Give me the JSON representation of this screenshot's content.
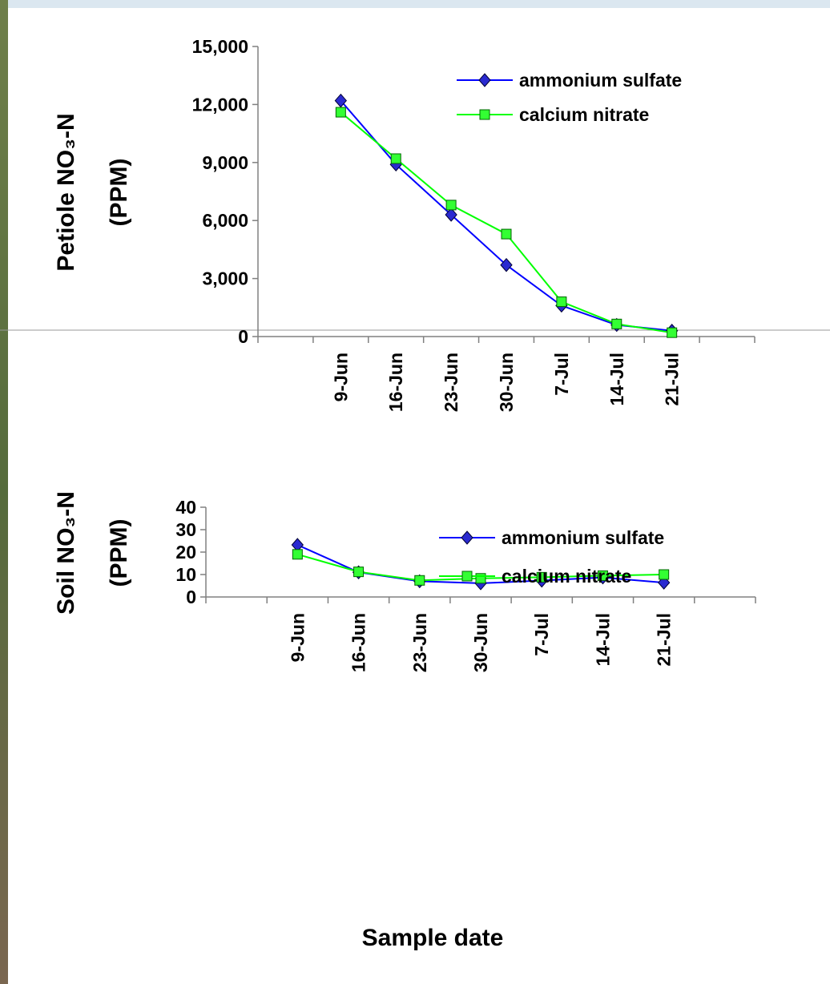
{
  "chart_data": [
    {
      "type": "line",
      "ylabel": [
        "Petiole NO₃-N",
        "(PPM)"
      ],
      "categories": [
        null,
        "9-Jun",
        "16-Jun",
        "23-Jun",
        "30-Jun",
        "7-Jul",
        "14-Jul",
        "21-Jul",
        null
      ],
      "series": [
        {
          "name": "ammonium sulfate",
          "color": "#0000ff",
          "marker": "diamond",
          "marker_color": "#2a2ad0",
          "values": [
            null,
            12200,
            8900,
            6300,
            3700,
            1600,
            600,
            300,
            null
          ]
        },
        {
          "name": "calcium nitrate",
          "color": "#00ff00",
          "marker": "square",
          "marker_color": "#33ff33",
          "values": [
            null,
            11600,
            9200,
            6800,
            5300,
            1800,
            650,
            200,
            null
          ]
        }
      ],
      "ylim": [
        0,
        15000
      ],
      "yticks": [
        {
          "value": 0,
          "label": "0"
        },
        {
          "value": 3000,
          "label": "3,000"
        },
        {
          "value": 6000,
          "label": "6,000"
        },
        {
          "value": 9000,
          "label": "9,000"
        },
        {
          "value": 12000,
          "label": "12,000"
        },
        {
          "value": 15000,
          "label": "15,000"
        }
      ]
    },
    {
      "type": "line",
      "ylabel": [
        "Soil NO₃-N",
        "(PPM)"
      ],
      "xlabel": "Sample date",
      "categories": [
        null,
        "9-Jun",
        "16-Jun",
        "23-Jun",
        "30-Jun",
        "7-Jul",
        "14-Jul",
        "21-Jul",
        null
      ],
      "series": [
        {
          "name": "ammonium sulfate",
          "color": "#0000ff",
          "marker": "diamond",
          "marker_color": "#2a2ad0",
          "values": [
            null,
            23.2,
            11.0,
            7.0,
            6.1,
            7.3,
            8.7,
            6.4,
            null
          ]
        },
        {
          "name": "calcium nitrate",
          "color": "#00ff00",
          "marker": "square",
          "marker_color": "#33ff33",
          "values": [
            null,
            19.0,
            11.2,
            7.4,
            8.3,
            8.8,
            9.5,
            10.0,
            null
          ]
        }
      ],
      "ylim": [
        0,
        40
      ],
      "yticks": [
        0,
        10,
        20,
        30,
        40
      ]
    }
  ]
}
